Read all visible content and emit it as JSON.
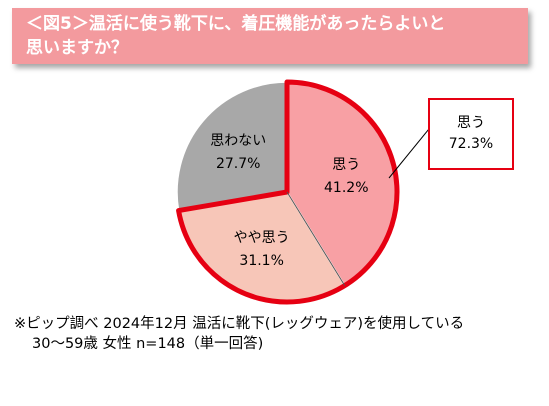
{
  "title": {
    "line1": "＜図5＞温活に使う靴下に、着圧機能があったらよいと",
    "line2": "思いますか？"
  },
  "chart_data": {
    "type": "pie",
    "categories": [
      "思う",
      "やや思う",
      "思わない"
    ],
    "values": [
      41.2,
      31.1,
      27.7
    ],
    "value_labels": [
      "41.2%",
      "31.1%",
      "27.7%"
    ],
    "colors": [
      "#f8a0a4",
      "#f7c6b8",
      "#a8a8a8"
    ],
    "highlight_color": "#e60012",
    "callout": {
      "label": "思う",
      "value": "72.3%"
    }
  },
  "footnote": {
    "line1": "※ピップ調べ  2024年12月 温活に靴下(レッグウェア)を使用している",
    "line2": "30〜59歳 女性 n=148（単一回答)"
  }
}
